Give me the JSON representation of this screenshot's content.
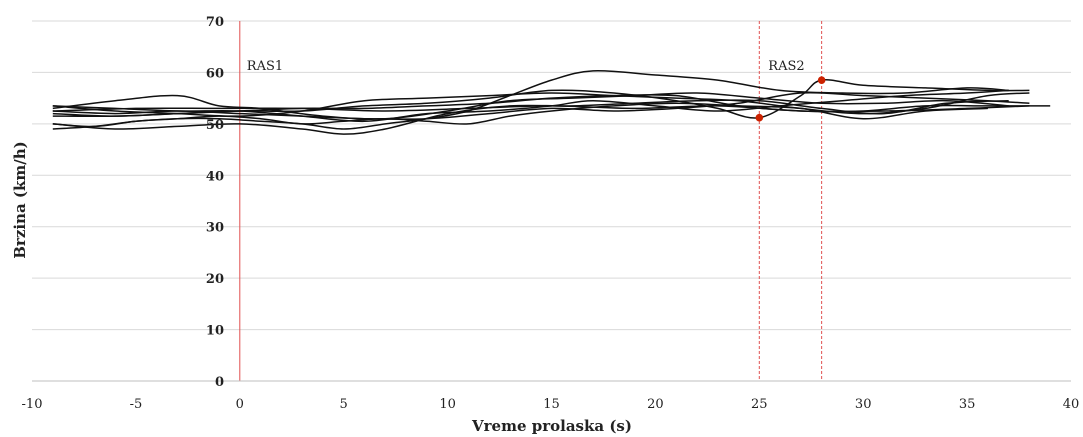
{
  "chart_data": {
    "type": "line",
    "xlabel": "Vreme prolaska (s)",
    "ylabel": "Brzina (km/h)",
    "xlim": [
      -10,
      40
    ],
    "ylim": [
      0,
      70
    ],
    "xticks": [
      "-10",
      "-5",
      "0",
      "5",
      "10",
      "15",
      "20",
      "25",
      "30",
      "35",
      "40"
    ],
    "yticks": [
      "0",
      "10",
      "20",
      "30",
      "40",
      "50",
      "60",
      "70"
    ],
    "grid": "horizontal",
    "line_color": "#111111",
    "marker_color": "#cc2200",
    "reference_color": "#e05050",
    "annotations": [
      {
        "text": "RAS1",
        "x": 0
      },
      {
        "text": "RAS2",
        "x": 25
      }
    ],
    "vertical_lines": [
      {
        "x": 0,
        "style": "solid"
      },
      {
        "x": 25,
        "style": "dashed"
      },
      {
        "x": 28,
        "style": "dashed"
      }
    ],
    "markers": [
      {
        "x": 25,
        "y": 51.2
      },
      {
        "x": 28,
        "y": 58.5
      }
    ],
    "series": [
      {
        "x": [
          -9,
          -6,
          -3,
          0,
          3,
          6,
          9,
          12,
          15,
          17,
          20,
          23,
          26,
          29,
          32,
          35,
          37
        ],
        "values": [
          53.5,
          53.0,
          52.5,
          52.5,
          51.5,
          50.5,
          52.0,
          52.5,
          53.5,
          54.5,
          53.5,
          52.5,
          53.5,
          54.5,
          55.5,
          56.0,
          56.5
        ]
      },
      {
        "x": [
          -9,
          -7,
          -5,
          -3,
          -1,
          1,
          3,
          5,
          7,
          9,
          11,
          13,
          15,
          17,
          20,
          23,
          26,
          29,
          32,
          35,
          37
        ],
        "values": [
          49.0,
          49.5,
          50.5,
          51.0,
          51.0,
          50.5,
          50.0,
          49.0,
          50.0,
          51.0,
          52.5,
          55.5,
          58.5,
          60.3,
          59.5,
          58.5,
          56.5,
          56.0,
          56.0,
          57.0,
          56.5
        ]
      },
      {
        "x": [
          -9,
          -6,
          -3,
          0,
          3,
          6,
          9,
          12,
          15,
          18,
          21,
          23,
          25,
          27,
          28,
          30,
          33,
          36,
          38
        ],
        "values": [
          52.0,
          51.5,
          52.0,
          52.5,
          52.5,
          53.5,
          54.0,
          55.0,
          56.5,
          56.0,
          54.5,
          53.0,
          51.2,
          55.5,
          58.5,
          57.5,
          57.0,
          56.5,
          56.5
        ]
      },
      {
        "x": [
          -9,
          -6,
          -3,
          -1,
          1,
          4,
          7,
          10,
          13,
          16,
          19,
          22,
          25,
          28,
          31,
          34,
          37
        ],
        "values": [
          53.0,
          54.5,
          55.5,
          53.5,
          53.0,
          51.5,
          51.0,
          52.5,
          54.5,
          55.0,
          55.5,
          56.0,
          55.0,
          54.0,
          54.0,
          54.5,
          53.5
        ]
      },
      {
        "x": [
          -9,
          -6,
          -3,
          0,
          3,
          6,
          9,
          12,
          15,
          18,
          21,
          24,
          27,
          30,
          33,
          36,
          39
        ],
        "values": [
          51.5,
          51.5,
          52.0,
          52.5,
          53.0,
          53.0,
          53.5,
          54.0,
          55.0,
          55.5,
          55.5,
          53.5,
          52.5,
          52.5,
          53.5,
          53.5,
          53.5
        ]
      },
      {
        "x": [
          -9,
          -6,
          -3,
          0,
          3,
          5,
          7,
          10,
          13,
          16,
          19,
          22,
          25,
          28,
          31,
          34,
          37
        ],
        "values": [
          50.0,
          49.0,
          49.5,
          50.0,
          49.0,
          48.0,
          49.0,
          52.0,
          53.5,
          53.5,
          54.0,
          54.5,
          54.5,
          53.0,
          52.0,
          54.0,
          54.5
        ]
      },
      {
        "x": [
          -9,
          -6,
          -3,
          0,
          3,
          6,
          9,
          12,
          15,
          18,
          21,
          24,
          27,
          30,
          33,
          36,
          38
        ],
        "values": [
          53.5,
          52.5,
          52.0,
          51.5,
          52.5,
          54.5,
          55.0,
          55.5,
          56.0,
          55.5,
          55.0,
          54.5,
          53.0,
          52.0,
          53.0,
          55.5,
          56.0
        ]
      },
      {
        "x": [
          -9,
          -7,
          -5,
          -3,
          -1,
          1,
          3,
          5,
          7,
          9,
          11,
          13,
          15,
          18,
          21,
          24,
          27,
          30,
          33,
          36
        ],
        "values": [
          50.0,
          49.5,
          50.5,
          51.0,
          51.5,
          51.0,
          50.0,
          50.5,
          51.0,
          50.5,
          50.0,
          51.5,
          52.5,
          53.5,
          54.0,
          53.5,
          53.0,
          51.0,
          52.5,
          53.0
        ]
      },
      {
        "x": [
          -9,
          -6,
          -3,
          0,
          3,
          6,
          9,
          12,
          15,
          18,
          21,
          24,
          27,
          30,
          33,
          36,
          38
        ],
        "values": [
          52.5,
          52.0,
          52.5,
          52.0,
          51.5,
          51.0,
          51.0,
          52.0,
          53.0,
          52.5,
          53.0,
          54.0,
          56.0,
          55.5,
          55.0,
          54.5,
          54.0
        ]
      },
      {
        "x": [
          -9,
          -5,
          -1,
          3,
          7,
          11,
          15,
          19,
          23,
          27,
          31,
          35,
          38
        ],
        "values": [
          52.5,
          53.0,
          53.0,
          53.0,
          52.5,
          53.0,
          53.5,
          53.0,
          53.5,
          52.5,
          52.5,
          53.0,
          53.5
        ]
      }
    ]
  }
}
